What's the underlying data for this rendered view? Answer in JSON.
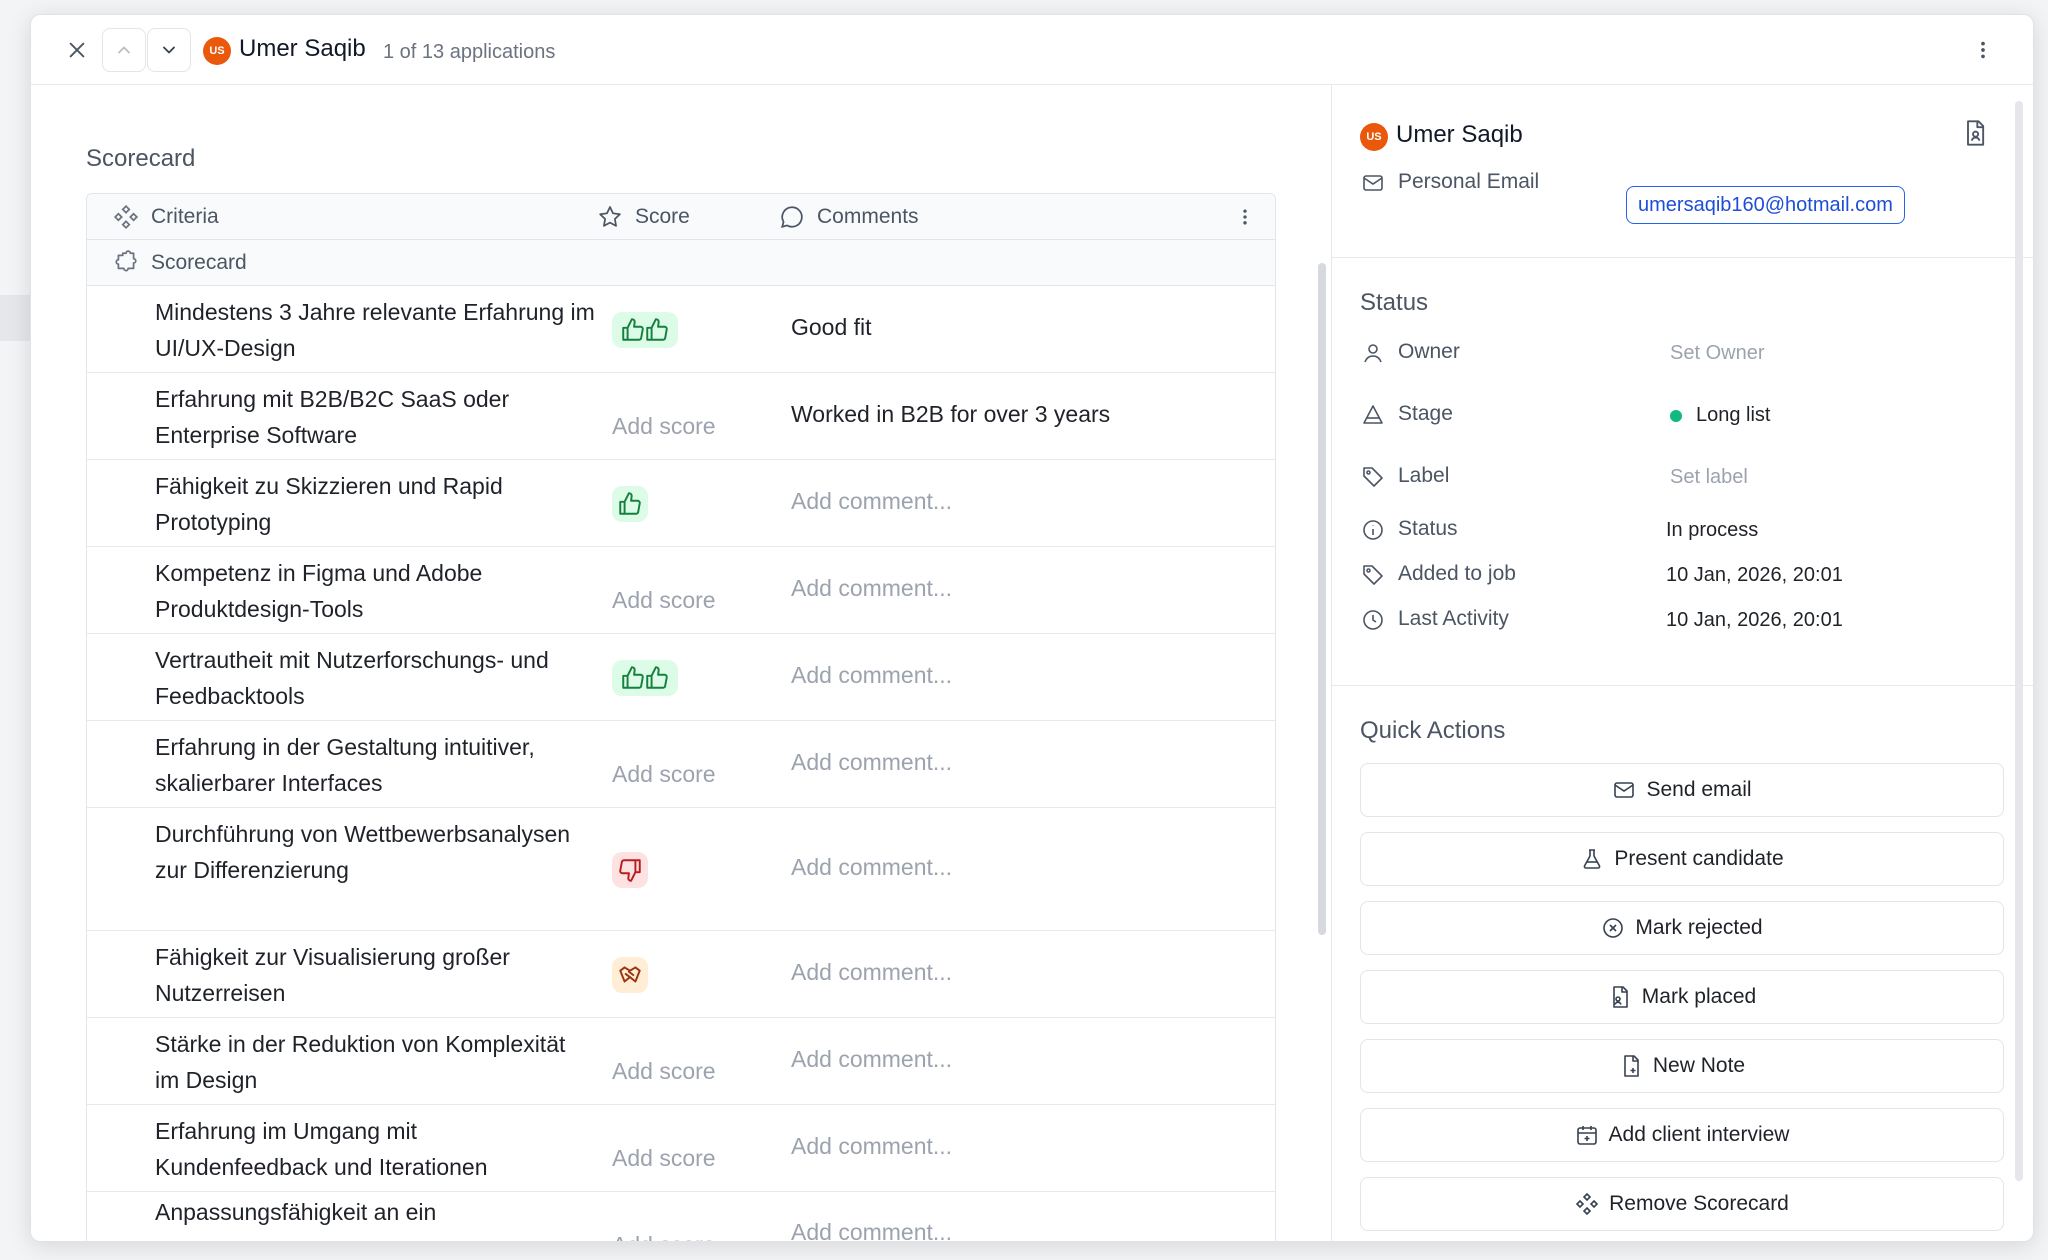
{
  "header": {
    "avatar_initials": "US",
    "candidate_name": "Umer Saqib",
    "position_text": "1 of 13 applications"
  },
  "scorecard": {
    "title": "Scorecard",
    "columns": {
      "criteria": "Criteria",
      "score": "Score",
      "comments": "Comments"
    },
    "group_label": "Scorecard",
    "rows": [
      {
        "criteria": "Mindestens 3 Jahre relevante Erfahrung im UI/UX-Design",
        "score": "double-thumbs-up-icon",
        "score_text": "",
        "comment": "Good fit",
        "comment_filled": true
      },
      {
        "criteria": "Erfahrung mit B2B/B2C SaaS oder Enterprise Software",
        "score": "none",
        "score_text": "Add score",
        "comment": "Worked in B2B for over 3 years",
        "comment_filled": true
      },
      {
        "criteria": "Fähigkeit zu Skizzieren und Rapid Prototyping",
        "score": "thumbs-up-icon",
        "score_text": "",
        "comment": "Add comment...",
        "comment_filled": false
      },
      {
        "criteria": "Kompetenz in Figma und Adobe Produktdesign-Tools",
        "score": "none",
        "score_text": "Add score",
        "comment": "Add comment...",
        "comment_filled": false
      },
      {
        "criteria": "Vertrautheit mit Nutzerforschungs- und Feedbacktools",
        "score": "double-thumbs-up-icon",
        "score_text": "",
        "comment": "Add comment...",
        "comment_filled": false
      },
      {
        "criteria": "Erfahrung in der Gestaltung intuitiver, skalierbarer Interfaces",
        "score": "none",
        "score_text": "Add score",
        "comment": "Add comment...",
        "comment_filled": false
      },
      {
        "criteria": "Durchführung von Wettbewerbsanalysen zur Differenzierung",
        "score": "thumbs-down-icon",
        "score_text": "",
        "comment": "Add comment...",
        "comment_filled": false
      },
      {
        "criteria": "Fähigkeit zur Visualisierung großer Nutzerreisen",
        "score": "handshake-icon",
        "score_text": "",
        "comment": "Add comment...",
        "comment_filled": false
      },
      {
        "criteria": "Stärke in der Reduktion von Komplexität im Design",
        "score": "none",
        "score_text": "Add score",
        "comment": "Add comment...",
        "comment_filled": false
      },
      {
        "criteria": "Erfahrung im Umgang mit Kundenfeedback und Iterationen",
        "score": "none",
        "score_text": "Add score",
        "comment": "Add comment...",
        "comment_filled": false
      },
      {
        "criteria": "Anpassungsfähigkeit an ein",
        "score": "none",
        "score_text": "Add score",
        "comment": "Add comment...",
        "comment_filled": false
      }
    ]
  },
  "profile": {
    "avatar_initials": "US",
    "name": "Umer Saqib",
    "email_label": "Personal Email",
    "email": "umersaqib160@hotmail.com"
  },
  "status": {
    "title": "Status",
    "owner_label": "Owner",
    "owner_value": "Set Owner",
    "stage_label": "Stage",
    "stage_value": "Long list",
    "label_label": "Label",
    "label_value": "Set label",
    "status_label": "Status",
    "status_value": "In process",
    "added_label": "Added to job",
    "added_value": "10 Jan, 2026, 20:01",
    "activity_label": "Last Activity",
    "activity_value": "10 Jan, 2026, 20:01",
    "colors": {
      "stage_dot": "#10b981",
      "email_border": "#2563eb",
      "avatar": "#ea580c"
    }
  },
  "quick_actions": {
    "title": "Quick Actions",
    "send_email": "Send email",
    "present_candidate": "Present candidate",
    "mark_rejected": "Mark rejected",
    "mark_placed": "Mark placed",
    "new_note": "New Note",
    "add_client_interview": "Add client interview",
    "remove_scorecard": "Remove Scorecard"
  }
}
